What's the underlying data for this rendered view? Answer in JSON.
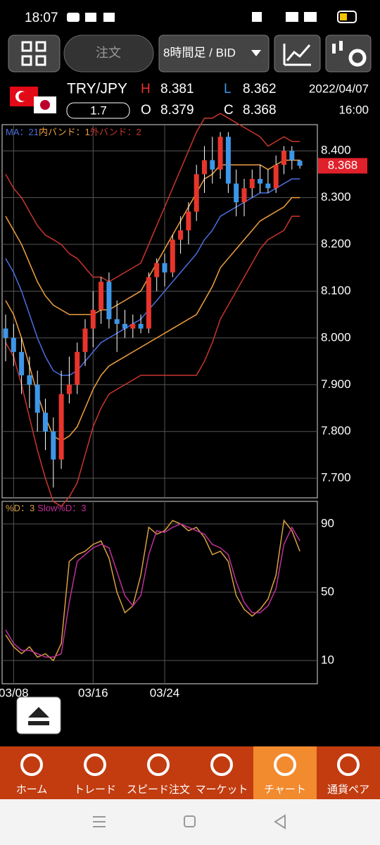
{
  "status_bar": {
    "time": "18:07"
  },
  "toolbar": {
    "order_button": "注文",
    "timeframe": "8時間足 / BID"
  },
  "quote": {
    "pair": "TRY/JPY",
    "spread": "1.7",
    "high_label": "H",
    "high": "8.381",
    "low_label": "L",
    "low": "8.362",
    "open_label": "O",
    "open": "8.379",
    "close_label": "C",
    "close": "8.368",
    "date": "2022/04/07",
    "time": "16:00"
  },
  "chart_data": [
    {
      "type": "candlestick",
      "up_color": "#e8352b",
      "down_color": "#3d97e8",
      "open": [
        8.02,
        8.0,
        7.97,
        7.92,
        7.9,
        7.84,
        7.8,
        7.74,
        7.88,
        7.9,
        7.97,
        8.02,
        8.06,
        8.12,
        8.04,
        8.03,
        8.02,
        8.03,
        8.02,
        8.13,
        8.16,
        8.14,
        8.21,
        8.23,
        8.27,
        8.35,
        8.38,
        8.36,
        8.43,
        8.33,
        8.29,
        8.32,
        8.34,
        8.33,
        8.32,
        8.37,
        8.4,
        8.379
      ],
      "high": [
        8.05,
        8.03,
        8.0,
        7.96,
        7.93,
        7.87,
        7.83,
        7.93,
        7.96,
        7.99,
        8.04,
        8.1,
        8.13,
        8.14,
        8.08,
        8.06,
        8.05,
        8.05,
        8.14,
        8.17,
        8.18,
        8.22,
        8.26,
        8.29,
        8.37,
        8.41,
        8.43,
        8.44,
        8.44,
        8.36,
        8.34,
        8.36,
        8.37,
        8.36,
        8.39,
        8.41,
        8.41,
        8.381
      ],
      "low": [
        7.95,
        7.94,
        7.88,
        7.85,
        7.8,
        7.76,
        7.68,
        7.72,
        7.86,
        7.88,
        7.94,
        7.98,
        8.03,
        8.02,
        7.97,
        8.0,
        8.0,
        8.01,
        8.01,
        8.1,
        8.11,
        8.13,
        8.18,
        8.2,
        8.25,
        8.31,
        8.33,
        8.34,
        8.31,
        8.26,
        8.26,
        8.3,
        8.31,
        8.31,
        8.31,
        8.35,
        8.36,
        8.362
      ],
      "close": [
        8.0,
        7.97,
        7.92,
        7.9,
        7.84,
        7.8,
        7.74,
        7.88,
        7.9,
        7.97,
        8.02,
        8.06,
        8.12,
        8.04,
        8.03,
        8.02,
        8.03,
        8.02,
        8.13,
        8.16,
        8.14,
        8.21,
        8.23,
        8.27,
        8.35,
        8.38,
        8.36,
        8.43,
        8.33,
        8.29,
        8.32,
        8.34,
        8.33,
        8.32,
        8.37,
        8.4,
        8.38,
        8.368
      ],
      "series": [
        {
          "name": "MA：21",
          "color": "#4a6fe0",
          "values": [
            8.17,
            8.14,
            8.1,
            8.05,
            8.0,
            7.96,
            7.93,
            7.92,
            7.92,
            7.93,
            7.95,
            7.97,
            7.99,
            8.0,
            8.01,
            8.02,
            8.03,
            8.04,
            8.06,
            8.08,
            8.1,
            8.12,
            8.14,
            8.16,
            8.18,
            8.21,
            8.23,
            8.26,
            8.27,
            8.28,
            8.29,
            8.3,
            8.31,
            8.31,
            8.32,
            8.33,
            8.34,
            8.34
          ]
        },
        {
          "name": "内バンド：1",
          "color": "#f0a040",
          "upper": [
            8.26,
            8.23,
            8.2,
            8.16,
            8.12,
            8.09,
            8.07,
            8.06,
            8.05,
            8.05,
            8.05,
            8.05,
            8.06,
            8.06,
            8.07,
            8.08,
            8.09,
            8.1,
            8.13,
            8.16,
            8.19,
            8.22,
            8.25,
            8.28,
            8.31,
            8.34,
            8.35,
            8.37,
            8.37,
            8.37,
            8.37,
            8.37,
            8.37,
            8.36,
            8.37,
            8.38,
            8.38,
            8.38
          ],
          "lower": [
            8.08,
            8.05,
            8.0,
            7.94,
            7.88,
            7.83,
            7.79,
            7.78,
            7.79,
            7.81,
            7.85,
            7.89,
            7.92,
            7.94,
            7.95,
            7.96,
            7.97,
            7.98,
            7.99,
            8.0,
            8.01,
            8.02,
            8.03,
            8.04,
            8.05,
            8.08,
            8.11,
            8.15,
            8.17,
            8.19,
            8.21,
            8.23,
            8.25,
            8.26,
            8.27,
            8.28,
            8.3,
            8.3
          ]
        },
        {
          "name": "外バンド：2",
          "color": "#c8362c",
          "upper": [
            8.35,
            8.32,
            8.3,
            8.27,
            8.24,
            8.22,
            8.21,
            8.2,
            8.18,
            8.17,
            8.15,
            8.13,
            8.13,
            8.12,
            8.13,
            8.14,
            8.15,
            8.16,
            8.2,
            8.24,
            8.28,
            8.32,
            8.36,
            8.4,
            8.44,
            8.47,
            8.47,
            8.48,
            8.47,
            8.46,
            8.45,
            8.44,
            8.43,
            8.41,
            8.42,
            8.43,
            8.42,
            8.42
          ],
          "lower": [
            7.99,
            7.96,
            7.9,
            7.83,
            7.76,
            7.7,
            7.65,
            7.64,
            7.66,
            7.69,
            7.75,
            7.81,
            7.85,
            7.88,
            7.89,
            7.9,
            7.91,
            7.92,
            7.92,
            7.92,
            7.92,
            7.92,
            7.92,
            7.92,
            7.92,
            7.95,
            7.99,
            8.04,
            8.07,
            8.1,
            8.13,
            8.16,
            8.19,
            8.21,
            8.22,
            8.23,
            8.26,
            8.26
          ]
        }
      ],
      "ylim": [
        7.658,
        8.456
      ],
      "yticks": [
        {
          "value": 8.4,
          "label": "8.400"
        },
        {
          "value": 8.3,
          "label": "8.300"
        },
        {
          "value": 8.2,
          "label": "8.200"
        },
        {
          "value": 8.1,
          "label": "8.100"
        },
        {
          "value": 8.0,
          "label": "8.000"
        },
        {
          "value": 7.9,
          "label": "7.900"
        },
        {
          "value": 7.8,
          "label": "7.800"
        },
        {
          "value": 7.7,
          "label": "7.700"
        }
      ],
      "grid": true
    },
    {
      "type": "line",
      "categories": [
        null,
        "03/08",
        null,
        null,
        null,
        null,
        null,
        null,
        null,
        null,
        null,
        "03/16",
        null,
        null,
        null,
        null,
        null,
        null,
        null,
        null,
        "03/24",
        null,
        null,
        null,
        null,
        null,
        null,
        null,
        null,
        null,
        null,
        null,
        null,
        null,
        null,
        null,
        null,
        null
      ],
      "series": [
        {
          "name": "%D：3",
          "color": "#d9a040",
          "values": [
            25,
            18,
            14,
            18,
            12,
            14,
            10,
            20,
            68,
            72,
            74,
            78,
            80,
            70,
            50,
            38,
            42,
            60,
            88,
            84,
            86,
            92,
            90,
            86,
            88,
            82,
            72,
            74,
            68,
            48,
            40,
            36,
            40,
            46,
            60,
            92,
            86,
            74
          ]
        },
        {
          "name": "Slow%D：3",
          "color": "#c0309a",
          "values": [
            28,
            20,
            16,
            16,
            14,
            12,
            12,
            14,
            44,
            68,
            72,
            76,
            78,
            76,
            62,
            48,
            42,
            48,
            72,
            86,
            85,
            88,
            90,
            88,
            86,
            84,
            78,
            76,
            72,
            56,
            44,
            38,
            38,
            42,
            52,
            78,
            88,
            80
          ]
        }
      ],
      "ylim": [
        -3.6,
        103.2
      ],
      "yticks": [
        90,
        50,
        10
      ],
      "grid": true
    }
  ],
  "nav": {
    "items": [
      "ホーム",
      "トレード",
      "スピード注文",
      "マーケット",
      "チャート",
      "通貨ペア"
    ],
    "active": 4
  }
}
